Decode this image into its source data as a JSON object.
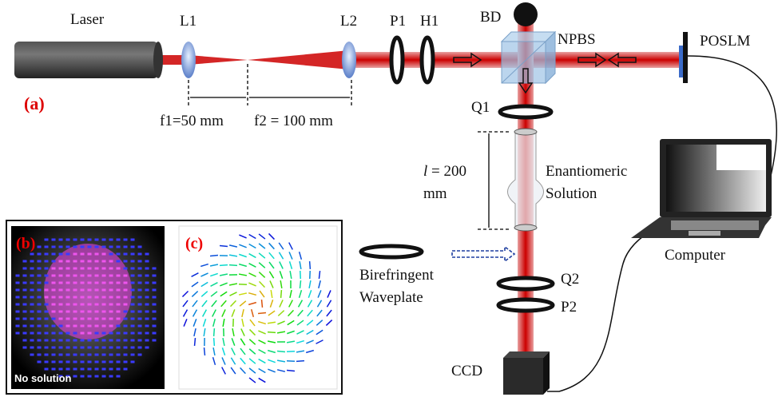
{
  "components": {
    "laser": "Laser",
    "l1": "L1",
    "l2": "L2",
    "p1": "P1",
    "h1": "H1",
    "bd": "BD",
    "npbs": "NPBS",
    "poslm": "POSLM",
    "q1": "Q1",
    "q2": "Q2",
    "p2": "P2",
    "ccd": "CCD",
    "computer": "Computer"
  },
  "sample": {
    "lines": [
      "Enantiomeric",
      "Solution"
    ],
    "length": {
      "symbol": "l",
      "value": "= 200",
      "unit": "mm"
    }
  },
  "waveplate": {
    "lines": [
      "Birefringent",
      "Waveplate"
    ]
  },
  "focal": {
    "f1": "f1=50 mm",
    "f2": "f2 = 100 mm"
  },
  "panels": {
    "a": "(a)",
    "b": "(b)",
    "c": "(c)",
    "b_caption": "No solution"
  }
}
